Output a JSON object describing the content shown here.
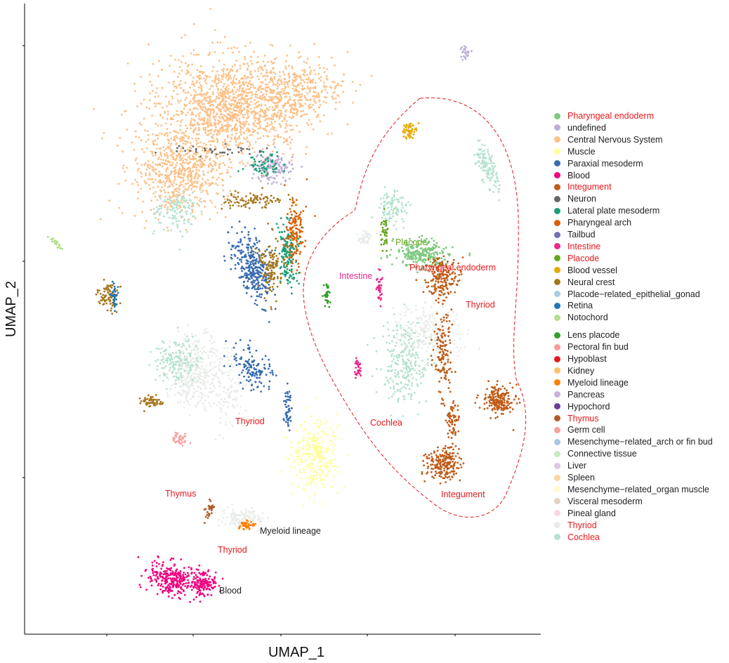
{
  "chart_data": {
    "type": "scatter",
    "title": "",
    "xlabel": "UMAP_1",
    "ylabel": "UMAP_2",
    "grid": false,
    "legend": "right",
    "legend_groups": [
      [
        {
          "name": "Pharyngeal endoderm",
          "color": "#7fc97f",
          "highlight": true
        },
        {
          "name": "undefined",
          "color": "#beaed4",
          "highlight": false
        },
        {
          "name": "Central Nervous System",
          "color": "#fdc086",
          "highlight": false
        },
        {
          "name": "Muscle",
          "color": "#ffff99",
          "highlight": false
        },
        {
          "name": "Paraxial mesoderm",
          "color": "#386cb0",
          "highlight": false
        },
        {
          "name": "Blood",
          "color": "#f0027f",
          "highlight": false
        },
        {
          "name": "Integument",
          "color": "#bf5b17",
          "highlight": true
        },
        {
          "name": "Neuron",
          "color": "#666666",
          "highlight": false
        },
        {
          "name": "Lateral plate mesoderm",
          "color": "#1b9e77",
          "highlight": false
        },
        {
          "name": "Pharyngeal arch",
          "color": "#d95f02",
          "highlight": false
        },
        {
          "name": "Tailbud",
          "color": "#7570b3",
          "highlight": false
        },
        {
          "name": "Intestine",
          "color": "#e7298a",
          "highlight": true
        },
        {
          "name": "Placode",
          "color": "#66a61e",
          "highlight": true
        },
        {
          "name": "Blood vessel",
          "color": "#e6ab02",
          "highlight": false
        },
        {
          "name": "Neural crest",
          "color": "#a6761d",
          "highlight": false
        },
        {
          "name": "Placode−related_epithelial_gonad",
          "color": "#a6cee3",
          "highlight": false
        },
        {
          "name": "Retina",
          "color": "#1f78b4",
          "highlight": false
        },
        {
          "name": "Notochord",
          "color": "#b2df8a",
          "highlight": false
        }
      ],
      [
        {
          "name": "Lens placode",
          "color": "#33a02c",
          "highlight": false
        },
        {
          "name": "Pectoral fin bud",
          "color": "#fb9a99",
          "highlight": false
        },
        {
          "name": "Hypoblast",
          "color": "#e31a1c",
          "highlight": false
        },
        {
          "name": "Kidney",
          "color": "#fdbf6f",
          "highlight": false
        },
        {
          "name": "Myeloid lineage",
          "color": "#ff7f00",
          "highlight": false
        },
        {
          "name": "Pancreas",
          "color": "#cab2d6",
          "highlight": false
        },
        {
          "name": "Hypochord",
          "color": "#6a3d9a",
          "highlight": false
        },
        {
          "name": "Thymus",
          "color": "#b15928",
          "highlight": true
        },
        {
          "name": "Germ cell",
          "color": "#f4a3a0",
          "highlight": false
        },
        {
          "name": "Mesenchyme−related_arch or fin bud",
          "color": "#a9c6e4",
          "highlight": false
        },
        {
          "name": "Connective tissue",
          "color": "#c7e9c0",
          "highlight": false
        },
        {
          "name": "Liver",
          "color": "#dcc6e0",
          "highlight": false
        },
        {
          "name": "Spleen",
          "color": "#fdd49e",
          "highlight": false
        },
        {
          "name": "Mesenchyme−related_organ muscle",
          "color": "#fffcc9",
          "highlight": false
        },
        {
          "name": "Visceral mesoderm",
          "color": "#e3d4c2",
          "highlight": false
        },
        {
          "name": "Pineal gland",
          "color": "#fcd5e5",
          "highlight": false
        },
        {
          "name": "Thyriod",
          "color": "#e8ece8",
          "highlight": true
        },
        {
          "name": "Cochlea",
          "color": "#b3e2cd",
          "highlight": true
        }
      ]
    ],
    "annotations": [
      {
        "text": "Placode",
        "color": "#66a61e"
      },
      {
        "text": "Pharyngeal endoderm",
        "color": "#e8191c"
      },
      {
        "text": "Intestine",
        "color": "#e7298a"
      },
      {
        "text": "Thyriod",
        "color": "#e8191c"
      },
      {
        "text": "Thyriod",
        "color": "#e8191c"
      },
      {
        "text": "Cochlea",
        "color": "#e8191c"
      },
      {
        "text": "Integument",
        "color": "#e8191c"
      },
      {
        "text": "Thymus",
        "color": "#e8191c"
      },
      {
        "text": "Myeloid lineage",
        "color": "#222222"
      },
      {
        "text": "Thyriod",
        "color": "#e8191c"
      },
      {
        "text": "Blood",
        "color": "#222222"
      }
    ]
  },
  "colors": {
    "highlight_text": "#e8191c",
    "dashed_outline": "#e8191c",
    "axis": "#000000"
  }
}
